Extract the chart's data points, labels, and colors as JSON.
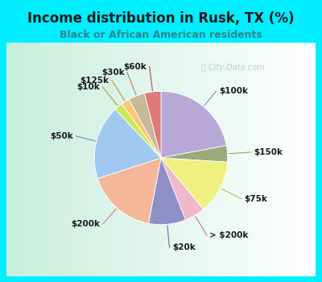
{
  "title": "Income distribution in Rusk, TX (%)",
  "subtitle": "Black or African American residents",
  "bg_cyan": "#00eeff",
  "bg_chart_color1": "#e8f5f0",
  "bg_chart_color2": "#ffffff",
  "watermark": "ⓘ City-Data.com",
  "slices": [
    {
      "label": "$100k",
      "value": 22,
      "color": "#b8a8d8"
    },
    {
      "label": "$150k",
      "value": 4,
      "color": "#9aaa7a"
    },
    {
      "label": "$75k",
      "value": 13,
      "color": "#f0f080"
    },
    {
      "label": "> $200k",
      "value": 5,
      "color": "#f0b8c8"
    },
    {
      "label": "$20k",
      "value": 9,
      "color": "#9090c8"
    },
    {
      "label": "$200k",
      "value": 17,
      "color": "#f4b898"
    },
    {
      "label": "$50k",
      "value": 18,
      "color": "#a0c8f0"
    },
    {
      "label": "$10k",
      "value": 2,
      "color": "#c8e858"
    },
    {
      "label": "$125k",
      "value": 2,
      "color": "#f8c870"
    },
    {
      "label": "$30k",
      "value": 4,
      "color": "#c8b898"
    },
    {
      "label": "$60k",
      "value": 4,
      "color": "#e07878"
    }
  ],
  "label_fontsize": 7.5,
  "title_fontsize": 12,
  "subtitle_fontsize": 9,
  "title_color": "#1a1a1a",
  "subtitle_color": "#2a8888"
}
